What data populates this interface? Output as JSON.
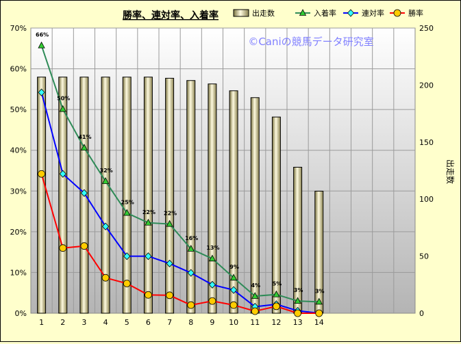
{
  "chart_data": {
    "type": "bar+line",
    "title": "勝率、連対率、入着率",
    "watermark": "©Caniの競馬データ研究室",
    "categories": [
      "1",
      "2",
      "3",
      "4",
      "5",
      "6",
      "7",
      "8",
      "9",
      "10",
      "11",
      "12",
      "13",
      "14"
    ],
    "bar_series": {
      "name": "出走数",
      "axis": "right",
      "color": "#f5f0b0",
      "values": [
        207,
        207,
        207,
        207,
        207,
        207,
        206,
        204,
        201,
        195,
        189,
        172,
        128,
        107
      ]
    },
    "line_series": [
      {
        "name": "入着率",
        "color": "#2e8b57",
        "marker": "triangle",
        "values": [
          65.7,
          50.1,
          40.6,
          32.4,
          24.6,
          22.2,
          21.9,
          15.8,
          13.4,
          8.7,
          4.2,
          4.6,
          3.0,
          2.8
        ],
        "data_labels": [
          "66%",
          "50%",
          "41%",
          "32%",
          "25%",
          "22%",
          "22%",
          "16%",
          "13%",
          "9%",
          "4%",
          "5%",
          "3%",
          "3%"
        ]
      },
      {
        "name": "連対率",
        "color": "#0000ff",
        "marker": "diamond",
        "values": [
          54.2,
          34.2,
          29.5,
          21.3,
          14.0,
          14.0,
          12.2,
          9.9,
          7.0,
          5.7,
          1.6,
          2.2,
          0.6,
          0.0
        ]
      },
      {
        "name": "勝率",
        "color": "#ff0000",
        "marker": "circle",
        "values": [
          34.2,
          16.0,
          16.5,
          8.7,
          7.3,
          4.5,
          4.4,
          2.0,
          3.0,
          2.0,
          0.5,
          1.7,
          0.0,
          0.0
        ]
      }
    ],
    "y_left": {
      "min": 0,
      "max": 70,
      "step": 10,
      "ticks": [
        "0%",
        "10%",
        "20%",
        "30%",
        "40%",
        "50%",
        "60%",
        "70%"
      ]
    },
    "y_right": {
      "min": 0,
      "max": 250,
      "step": 50,
      "ticks": [
        "0",
        "50",
        "100",
        "150",
        "200",
        "250"
      ],
      "label": "出走数"
    },
    "x_slots": 18,
    "grid": true,
    "legend": "top",
    "legend_order": [
      "出走数",
      "入着率",
      "連対率",
      "勝率"
    ]
  }
}
